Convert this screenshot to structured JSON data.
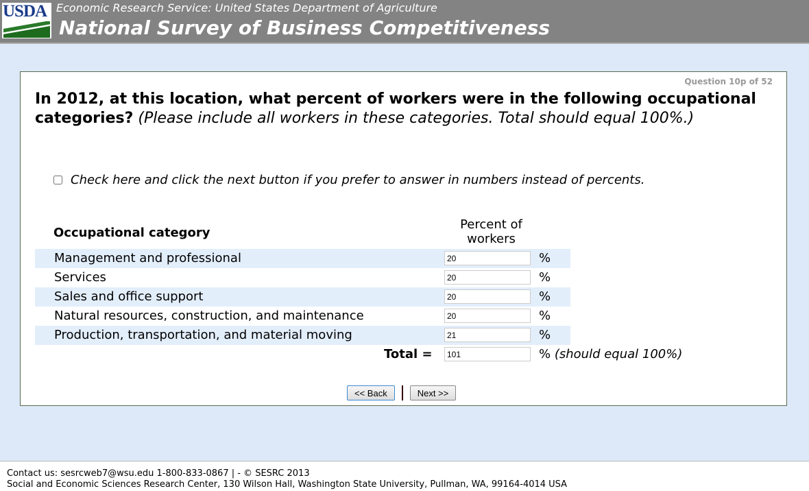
{
  "header": {
    "logo_text": "USDA",
    "subtitle": "Economic Research Service: United States Department of Agriculture",
    "title": "National Survey of Business Competitiveness"
  },
  "question": {
    "number": "Question 10p of 52",
    "text_bold": "In 2012, at this location, what percent of workers were in the following occupational categories?",
    "text_italic": "(Please include all workers in these categories. Total should equal 100%.)",
    "checkbox_label": "Check here and click the next button if you prefer to answer in numbers instead of percents.",
    "checkbox_checked": false
  },
  "table": {
    "category_header": "Occupational category",
    "percent_header": "Percent of workers",
    "unit": "%",
    "rows": [
      {
        "label": "Management and professional",
        "value": "20"
      },
      {
        "label": "Services",
        "value": "20"
      },
      {
        "label": "Sales and office support",
        "value": "20"
      },
      {
        "label": "Natural resources, construction, and maintenance",
        "value": "20"
      },
      {
        "label": "Production, transportation, and material moving",
        "value": "21"
      }
    ],
    "total_label": "Total =",
    "total_value": "101",
    "total_note": "(should equal 100%)"
  },
  "nav": {
    "back": "<< Back",
    "next": "Next >>"
  },
  "footer": {
    "line1": "Contact us: sesrcweb7@wsu.edu 1-800-833-0867 | - © SESRC 2013",
    "line2": "Social and Economic Sciences Research Center, 130 Wilson Hall, Washington State University, Pullman, WA, 99164-4014 USA"
  }
}
